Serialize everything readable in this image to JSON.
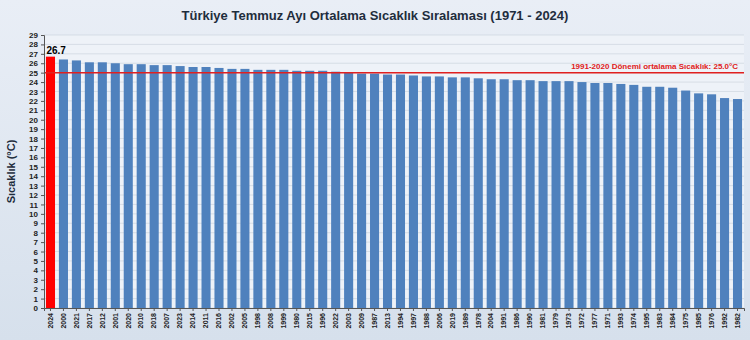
{
  "chart_data": {
    "type": "bar",
    "title": "Türkiye Temmuz Ayı Ortalama Sıcaklık Sıralaması (1971 - 2024)",
    "y_label": "Sıcaklık (°C)",
    "categories": [
      "2024",
      "2000",
      "2021",
      "2017",
      "2012",
      "2001",
      "2020",
      "2010",
      "2018",
      "2007",
      "2023",
      "2014",
      "2011",
      "2016",
      "2002",
      "2005",
      "1998",
      "2008",
      "1999",
      "1980",
      "2015",
      "1996",
      "2022",
      "2003",
      "2009",
      "1987",
      "2013",
      "1994",
      "1997",
      "1988",
      "2006",
      "2019",
      "1989",
      "1978",
      "2004",
      "1991",
      "1986",
      "1990",
      "1981",
      "1979",
      "1973",
      "1972",
      "1977",
      "1971",
      "1993",
      "1974",
      "1995",
      "1983",
      "1984",
      "1975",
      "1985",
      "1976",
      "1992",
      "1982"
    ],
    "values": [
      26.7,
      26.4,
      26.3,
      26.1,
      26.1,
      26.0,
      25.9,
      25.9,
      25.8,
      25.8,
      25.7,
      25.6,
      25.6,
      25.5,
      25.4,
      25.4,
      25.3,
      25.3,
      25.3,
      25.2,
      25.2,
      25.2,
      25.1,
      25.0,
      24.9,
      24.9,
      24.8,
      24.8,
      24.7,
      24.6,
      24.6,
      24.5,
      24.5,
      24.4,
      24.3,
      24.3,
      24.2,
      24.2,
      24.1,
      24.1,
      24.1,
      24.0,
      23.9,
      23.9,
      23.8,
      23.7,
      23.5,
      23.5,
      23.4,
      23.1,
      22.8,
      22.7,
      22.3,
      22.2
    ],
    "value_labels": [
      "26.7",
      null,
      null,
      null,
      null,
      null,
      null,
      null,
      null,
      null,
      null,
      null,
      null,
      null,
      null,
      null,
      null,
      null,
      null,
      null,
      null,
      null,
      null,
      null,
      null,
      null,
      null,
      null,
      null,
      null,
      null,
      null,
      null,
      null,
      null,
      null,
      null,
      null,
      null,
      null,
      null,
      null,
      null,
      null,
      null,
      null,
      null,
      null,
      null,
      null,
      null,
      null,
      null,
      null
    ],
    "data_labels": true,
    "colors": [
      "#ff0000",
      "#4f81bd",
      "#4f81bd",
      "#4f81bd",
      "#4f81bd",
      "#4f81bd",
      "#4f81bd",
      "#4f81bd",
      "#4f81bd",
      "#4f81bd",
      "#4f81bd",
      "#4f81bd",
      "#4f81bd",
      "#4f81bd",
      "#4f81bd",
      "#4f81bd",
      "#4f81bd",
      "#4f81bd",
      "#4f81bd",
      "#4f81bd",
      "#4f81bd",
      "#4f81bd",
      "#4f81bd",
      "#4f81bd",
      "#4f81bd",
      "#4f81bd",
      "#4f81bd",
      "#4f81bd",
      "#4f81bd",
      "#4f81bd",
      "#4f81bd",
      "#4f81bd",
      "#4f81bd",
      "#4f81bd",
      "#4f81bd",
      "#4f81bd",
      "#4f81bd",
      "#4f81bd",
      "#4f81bd",
      "#4f81bd",
      "#4f81bd",
      "#4f81bd",
      "#4f81bd",
      "#4f81bd",
      "#4f81bd",
      "#4f81bd",
      "#4f81bd",
      "#4f81bd",
      "#4f81bd",
      "#4f81bd",
      "#4f81bd",
      "#4f81bd",
      "#4f81bd",
      "#4f81bd"
    ],
    "ylim": [
      0,
      29
    ],
    "yticks": [
      0,
      1,
      2,
      3,
      4,
      5,
      6,
      7,
      8,
      9,
      10,
      11,
      12,
      13,
      14,
      15,
      16,
      17,
      18,
      19,
      20,
      21,
      22,
      23,
      24,
      25,
      26,
      27,
      28,
      29
    ],
    "grid": true,
    "annotations": [
      {
        "text": "1991-2020 Dönemi ortalama Sıcaklık: 25.0°C",
        "y": 25.0,
        "color": "#e02020"
      }
    ]
  }
}
